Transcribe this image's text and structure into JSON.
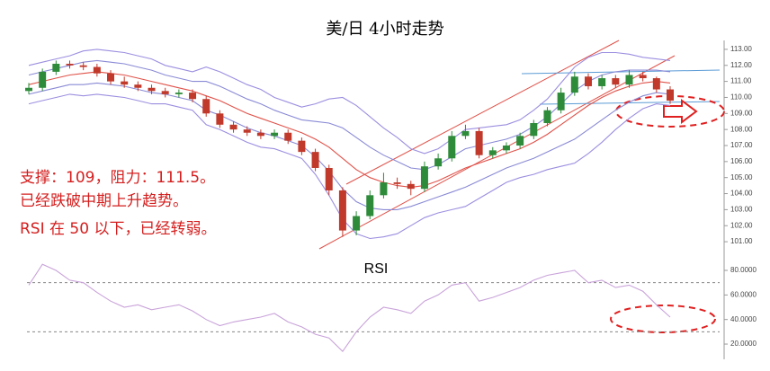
{
  "chart_data": [
    {
      "type": "candlestick",
      "title": "美/日 4小时走势",
      "annotations": [
        "支撑：109，阻力：111.5。",
        "已经跌破中期上升趋势。",
        "RSI 在 50 以下，已经转弱。"
      ],
      "up_color": "#2e8b3a",
      "down_color": "#c0392b",
      "open": [
        110.4,
        110.6,
        111.6,
        112.1,
        112.0,
        111.9,
        111.5,
        111.0,
        110.8,
        110.6,
        110.4,
        110.2,
        110.3,
        109.9,
        109.0,
        108.3,
        108.0,
        107.8,
        107.6,
        107.8,
        107.3,
        106.6,
        105.6,
        104.2,
        101.7,
        102.6,
        103.9,
        104.7,
        104.6,
        104.3,
        105.7,
        106.2,
        107.6,
        107.9,
        106.4,
        106.7,
        107.0,
        107.6,
        108.4,
        109.2,
        110.3,
        111.3,
        110.7,
        111.2,
        110.8,
        111.4,
        111.2,
        110.5
      ],
      "high": [
        110.9,
        111.8,
        112.3,
        112.3,
        112.2,
        112.1,
        111.7,
        111.3,
        111.0,
        110.8,
        110.6,
        110.5,
        110.5,
        110.1,
        109.2,
        108.5,
        108.2,
        108.0,
        108.0,
        108.0,
        107.5,
        106.8,
        105.8,
        104.4,
        102.9,
        104.2,
        105.3,
        105.0,
        104.8,
        106.0,
        106.5,
        107.9,
        108.3,
        108.1,
        106.9,
        107.2,
        107.8,
        108.6,
        109.4,
        110.6,
        111.6,
        111.5,
        111.4,
        111.4,
        111.7,
        111.6,
        111.3,
        110.7
      ],
      "low": [
        110.2,
        110.4,
        111.4,
        111.8,
        111.7,
        111.3,
        110.8,
        110.6,
        110.4,
        110.2,
        110.0,
        110.0,
        109.7,
        108.8,
        108.1,
        107.8,
        107.6,
        107.4,
        107.4,
        107.1,
        106.4,
        105.4,
        103.9,
        101.3,
        101.4,
        102.4,
        103.7,
        104.3,
        103.9,
        104.1,
        105.5,
        106.0,
        107.4,
        106.2,
        106.2,
        106.5,
        106.8,
        107.4,
        108.2,
        109.0,
        110.1,
        110.5,
        110.5,
        110.6,
        110.6,
        111.0,
        110.3,
        109.6
      ],
      "close": [
        110.6,
        111.6,
        112.1,
        112.0,
        111.9,
        111.5,
        111.0,
        110.8,
        110.6,
        110.4,
        110.2,
        110.3,
        109.9,
        109.0,
        108.3,
        108.0,
        107.8,
        107.6,
        107.8,
        107.3,
        106.6,
        105.6,
        104.2,
        101.7,
        102.6,
        103.9,
        104.7,
        104.6,
        104.3,
        105.7,
        106.2,
        107.6,
        107.9,
        106.4,
        106.7,
        107.0,
        107.6,
        108.4,
        109.2,
        110.3,
        111.3,
        110.7,
        111.2,
        110.8,
        111.4,
        111.2,
        110.5,
        109.8
      ],
      "overlays": [
        {
          "color": "#e0524a",
          "values": [
            110.8,
            111.0,
            111.2,
            111.4,
            111.5,
            111.6,
            111.5,
            111.4,
            111.2,
            111.0,
            110.8,
            110.6,
            110.4,
            110.1,
            109.8,
            109.4,
            109.0,
            108.7,
            108.4,
            108.1,
            107.8,
            107.4,
            106.9,
            106.2,
            105.5,
            105.0,
            104.7,
            104.5,
            104.4,
            104.5,
            104.8,
            105.2,
            105.6,
            105.9,
            106.2,
            106.5,
            106.8,
            107.2,
            107.7,
            108.3,
            108.9,
            109.5,
            110.0,
            110.4,
            110.7,
            110.9,
            111.0,
            110.9
          ]
        },
        {
          "color": "#8a8ad6",
          "values": [
            111.4,
            111.6,
            111.8,
            112.0,
            112.2,
            112.3,
            112.2,
            112.1,
            111.9,
            111.7,
            111.4,
            111.2,
            111.0,
            111.0,
            110.7,
            110.3,
            109.9,
            109.6,
            109.2,
            108.9,
            108.6,
            108.5,
            108.4,
            108.1,
            107.5,
            106.9,
            106.4,
            106.0,
            105.6,
            105.5,
            105.8,
            106.3,
            106.8,
            107.0,
            107.2,
            107.4,
            107.7,
            108.2,
            108.8,
            109.6,
            110.4,
            111.0,
            111.4,
            111.6,
            111.7,
            111.7,
            111.7,
            111.6
          ]
        },
        {
          "color": "#8a8ad6",
          "values": [
            110.2,
            110.4,
            110.6,
            110.8,
            110.8,
            110.9,
            110.8,
            110.7,
            110.5,
            110.3,
            110.2,
            110.0,
            109.8,
            109.2,
            108.9,
            108.5,
            108.1,
            107.8,
            107.6,
            107.3,
            107.0,
            106.3,
            105.4,
            104.3,
            103.5,
            103.1,
            103.0,
            103.0,
            103.2,
            103.5,
            103.8,
            104.1,
            104.4,
            104.8,
            105.2,
            105.6,
            105.9,
            106.2,
            106.6,
            107.0,
            107.4,
            108.0,
            108.6,
            109.2,
            109.7,
            110.1,
            110.3,
            110.2
          ]
        },
        {
          "color": "#9c8fe0",
          "values": [
            112.0,
            112.2,
            112.4,
            112.6,
            112.9,
            113.0,
            112.9,
            112.8,
            112.6,
            112.4,
            112.0,
            111.8,
            111.6,
            111.9,
            111.6,
            111.2,
            110.8,
            110.5,
            110.0,
            109.7,
            109.4,
            109.6,
            109.9,
            110.0,
            109.5,
            108.8,
            108.1,
            107.5,
            106.8,
            106.5,
            106.8,
            107.4,
            108.0,
            108.1,
            108.2,
            108.3,
            108.6,
            109.2,
            109.9,
            110.9,
            111.9,
            112.5,
            112.8,
            112.8,
            112.7,
            112.5,
            112.4,
            112.3
          ]
        },
        {
          "color": "#9c8fe0",
          "values": [
            109.6,
            109.8,
            110.0,
            110.2,
            110.1,
            110.2,
            110.1,
            110.0,
            109.8,
            109.6,
            109.6,
            109.4,
            109.2,
            108.3,
            108.0,
            107.6,
            107.2,
            106.9,
            106.8,
            106.5,
            106.2,
            105.2,
            103.9,
            102.4,
            101.5,
            101.2,
            101.3,
            101.5,
            102.0,
            102.5,
            102.8,
            103.0,
            103.2,
            103.7,
            104.2,
            104.7,
            105.0,
            105.2,
            105.5,
            105.7,
            105.9,
            106.5,
            107.2,
            108.0,
            108.7,
            109.3,
            109.6,
            109.5
          ]
        }
      ],
      "ylim": [
        100.5,
        113.5
      ],
      "yticks": [
        {
          "value": 101,
          "label": "101.00"
        },
        {
          "value": 102,
          "label": "102.00"
        },
        {
          "value": 103,
          "label": "103.00"
        },
        {
          "value": 104,
          "label": "104.00"
        },
        {
          "value": 105,
          "label": "105.00"
        },
        {
          "value": 106,
          "label": "106.00"
        },
        {
          "value": 107,
          "label": "107.00"
        },
        {
          "value": 108,
          "label": "108.00"
        },
        {
          "value": 109,
          "label": "109.00"
        },
        {
          "value": 110,
          "label": "110.00"
        },
        {
          "value": 111,
          "label": "111.00"
        },
        {
          "value": 112,
          "label": "112.00"
        },
        {
          "value": 113,
          "label": "113.00"
        }
      ]
    },
    {
      "type": "line",
      "title": "RSI",
      "color": "#c9a3da",
      "values": [
        68,
        85,
        80,
        72,
        70,
        62,
        55,
        50,
        52,
        48,
        50,
        52,
        47,
        40,
        35,
        38,
        40,
        42,
        45,
        38,
        34,
        28,
        25,
        14,
        30,
        42,
        50,
        48,
        45,
        55,
        60,
        68,
        70,
        55,
        58,
        62,
        66,
        72,
        76,
        78,
        80,
        70,
        72,
        66,
        68,
        63,
        52,
        42
      ],
      "levels": [
        70,
        30
      ],
      "ylim": [
        10,
        95
      ],
      "yticks": [
        {
          "value": 20,
          "label": "20.0000"
        },
        {
          "value": 40,
          "label": "40.0000"
        },
        {
          "value": 60,
          "label": "60.0000"
        },
        {
          "value": 80,
          "label": "80.0000"
        }
      ]
    }
  ]
}
